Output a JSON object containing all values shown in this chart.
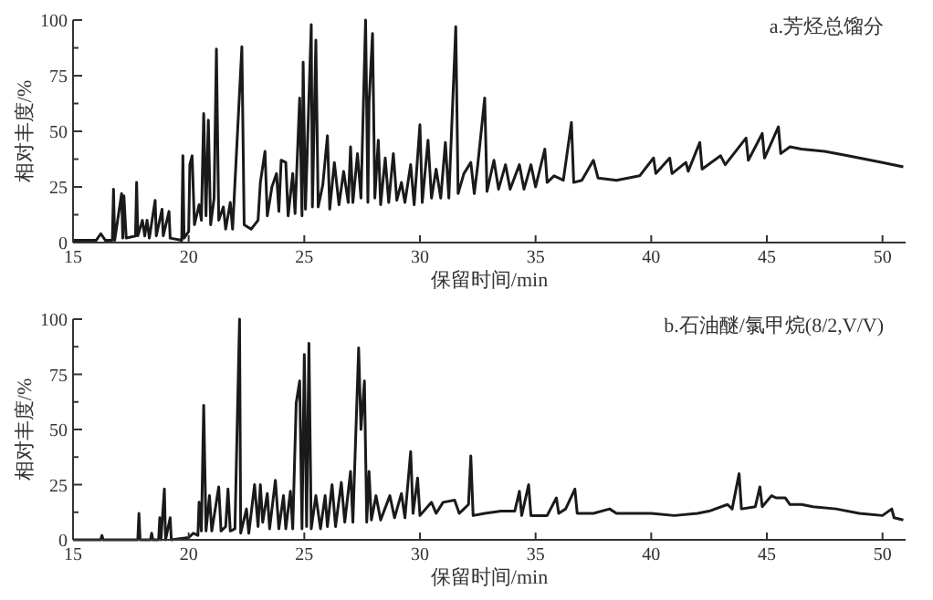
{
  "chart_data": [
    {
      "type": "line",
      "title": "a.芳烃总馏分",
      "xlabel": "保留时间/min",
      "ylabel": "相对丰度/%",
      "xlim": [
        15,
        51
      ],
      "ylim": [
        0,
        100
      ],
      "xticks": [
        15,
        20,
        25,
        30,
        35,
        40,
        45,
        50
      ],
      "yticks": [
        0,
        {
          "value": 12.5,
          "label": null
        },
        25,
        {
          "value": 37.5,
          "label": null
        },
        50,
        {
          "value": 62.5,
          "label": null
        },
        75,
        {
          "value": 87.5,
          "label": null
        },
        100
      ],
      "marker": "none",
      "line_style": "solid",
      "series": [
        {
          "color": "#1a1a1a",
          "x": [
            15,
            16,
            16.2,
            16.4,
            16.7,
            16.75,
            16.8,
            17.1,
            17.15,
            17.2,
            17.3,
            17.7,
            17.75,
            17.8,
            18.0,
            18.1,
            18.2,
            18.3,
            18.55,
            18.6,
            18.85,
            18.9,
            19.15,
            19.2,
            19.7,
            19.75,
            19.8,
            20.0,
            20.05,
            20.15,
            20.25,
            20.45,
            20.55,
            20.65,
            20.75,
            20.85,
            20.95,
            21.1,
            21.2,
            21.3,
            21.5,
            21.6,
            21.8,
            21.9,
            22.3,
            22.4,
            22.7,
            23.0,
            23.1,
            23.3,
            23.4,
            23.6,
            23.8,
            23.9,
            24.0,
            24.2,
            24.3,
            24.5,
            24.6,
            24.8,
            24.9,
            24.95,
            25.05,
            25.3,
            25.35,
            25.5,
            25.6,
            25.8,
            26.0,
            26.1,
            26.3,
            26.5,
            26.7,
            26.9,
            27.0,
            27.1,
            27.3,
            27.45,
            27.65,
            27.75,
            27.8,
            27.95,
            28.05,
            28.2,
            28.3,
            28.5,
            28.65,
            28.85,
            29.0,
            29.2,
            29.35,
            29.6,
            29.75,
            30.0,
            30.1,
            30.35,
            30.5,
            30.7,
            30.9,
            31.1,
            31.25,
            31.55,
            31.65,
            31.9,
            32.2,
            32.35,
            32.5,
            32.8,
            32.9,
            33.2,
            33.4,
            33.7,
            33.9,
            34.3,
            34.5,
            34.8,
            35.0,
            35.4,
            35.5,
            35.8,
            36.2,
            36.55,
            36.65,
            37.0,
            37.5,
            37.7,
            38.5,
            39.0,
            39.5,
            40.1,
            40.2,
            40.8,
            40.9,
            41.5,
            41.6,
            42.1,
            42.2,
            43.0,
            43.2,
            44.1,
            44.2,
            44.8,
            44.9,
            45.5,
            45.6,
            46.0,
            46.5,
            47.5,
            48.5,
            49.5,
            50.0,
            50.9
          ],
          "values": [
            1,
            1,
            4,
            1,
            1,
            24,
            1,
            22,
            2,
            21,
            2,
            3,
            27,
            3,
            10,
            3,
            10,
            2,
            19,
            3,
            15,
            3,
            14,
            2,
            1,
            39,
            2,
            5,
            35,
            39,
            8,
            17,
            10,
            58,
            12,
            55,
            8,
            20,
            87,
            10,
            16,
            6,
            18,
            6,
            88,
            8,
            6,
            10,
            27,
            41,
            12,
            25,
            31,
            14,
            37,
            36,
            12,
            31,
            13,
            65,
            12,
            81,
            15,
            98,
            16,
            91,
            16,
            26,
            48,
            15,
            36,
            17,
            32,
            18,
            43,
            18,
            40,
            20,
            100,
            18,
            63,
            94,
            20,
            46,
            17,
            38,
            18,
            40,
            19,
            27,
            18,
            35,
            17,
            53,
            18,
            46,
            20,
            33,
            20,
            45,
            20,
            97,
            22,
            31,
            36,
            22,
            35,
            65,
            23,
            37,
            24,
            35,
            24,
            35,
            24,
            35,
            25,
            42,
            27,
            30,
            28,
            54,
            27,
            28,
            37,
            29,
            28,
            29,
            30,
            38,
            31,
            38,
            31,
            36,
            32,
            45,
            33,
            39,
            35,
            47,
            37,
            49,
            38,
            52,
            40,
            43,
            42,
            41,
            39,
            37,
            36,
            34
          ]
        }
      ]
    },
    {
      "type": "line",
      "title": "b.石油醚/氯甲烷(8/2,V/V)",
      "xlabel": "保留时间/min",
      "ylabel": "相对丰度/%",
      "xlim": [
        15,
        51
      ],
      "ylim": [
        0,
        100
      ],
      "xticks": [
        15,
        20,
        25,
        30,
        35,
        40,
        45,
        50
      ],
      "yticks": [
        0,
        {
          "value": 12.5,
          "label": null
        },
        25,
        {
          "value": 37.5,
          "label": null
        },
        50,
        {
          "value": 62.5,
          "label": null
        },
        75,
        {
          "value": 87.5,
          "label": null
        },
        100
      ],
      "marker": "none",
      "line_style": "solid",
      "series": [
        {
          "color": "#1a1a1a",
          "x": [
            15,
            16.2,
            16.25,
            16.3,
            17.8,
            17.85,
            17.9,
            18.35,
            18.4,
            18.45,
            18.7,
            18.75,
            18.8,
            18.95,
            19.0,
            19.2,
            19.25,
            20.0,
            20.2,
            20.4,
            20.45,
            20.55,
            20.65,
            20.75,
            20.9,
            21.0,
            21.3,
            21.4,
            21.6,
            21.7,
            21.8,
            22.0,
            22.2,
            22.25,
            22.5,
            22.6,
            22.85,
            23.0,
            23.1,
            23.2,
            23.4,
            23.5,
            23.75,
            23.9,
            24.1,
            24.2,
            24.4,
            24.5,
            24.65,
            24.8,
            24.9,
            25.0,
            25.1,
            25.2,
            25.3,
            25.5,
            25.7,
            25.9,
            26.0,
            26.2,
            26.35,
            26.6,
            26.75,
            27.0,
            27.1,
            27.35,
            27.45,
            27.6,
            27.7,
            27.8,
            27.9,
            28.1,
            28.3,
            28.7,
            28.9,
            29.2,
            29.35,
            29.6,
            29.7,
            29.9,
            30.0,
            30.5,
            30.7,
            31.0,
            31.5,
            31.7,
            32.1,
            32.2,
            32.3,
            32.8,
            33.5,
            34.1,
            34.3,
            34.4,
            34.7,
            34.8,
            35.5,
            35.9,
            36.0,
            36.3,
            36.7,
            36.8,
            37.5,
            38.2,
            38.5,
            39.5,
            40.0,
            41.0,
            42.0,
            42.5,
            43.3,
            43.5,
            43.8,
            43.9,
            44.5,
            44.7,
            44.8,
            45.2,
            45.4,
            45.8,
            46.0,
            46.5,
            47.0,
            48.0,
            49.0,
            50.0,
            50.4,
            50.5,
            50.9
          ],
          "values": [
            0,
            0,
            2,
            0,
            0,
            12,
            0,
            0,
            3,
            0,
            0,
            10,
            0,
            23,
            0,
            10,
            0,
            1,
            3,
            2,
            17,
            4,
            61,
            4,
            20,
            4,
            24,
            4,
            6,
            23,
            4,
            5,
            100,
            3,
            14,
            3,
            25,
            6,
            25,
            8,
            21,
            5,
            27,
            5,
            20,
            5,
            22,
            5,
            62,
            72,
            5,
            84,
            6,
            89,
            5,
            20,
            5,
            20,
            6,
            25,
            6,
            26,
            8,
            31,
            8,
            87,
            50,
            72,
            8,
            31,
            9,
            20,
            9,
            20,
            10,
            21,
            10,
            40,
            12,
            28,
            11,
            17,
            12,
            17,
            18,
            12,
            16,
            38,
            11,
            12,
            13,
            13,
            22,
            11,
            25,
            11,
            11,
            19,
            12,
            14,
            23,
            12,
            12,
            14,
            12,
            12,
            12,
            11,
            12,
            13,
            16,
            14,
            30,
            14,
            15,
            24,
            15,
            20,
            19,
            19,
            16,
            16,
            15,
            14,
            12,
            11,
            14,
            10,
            9
          ]
        }
      ]
    }
  ]
}
